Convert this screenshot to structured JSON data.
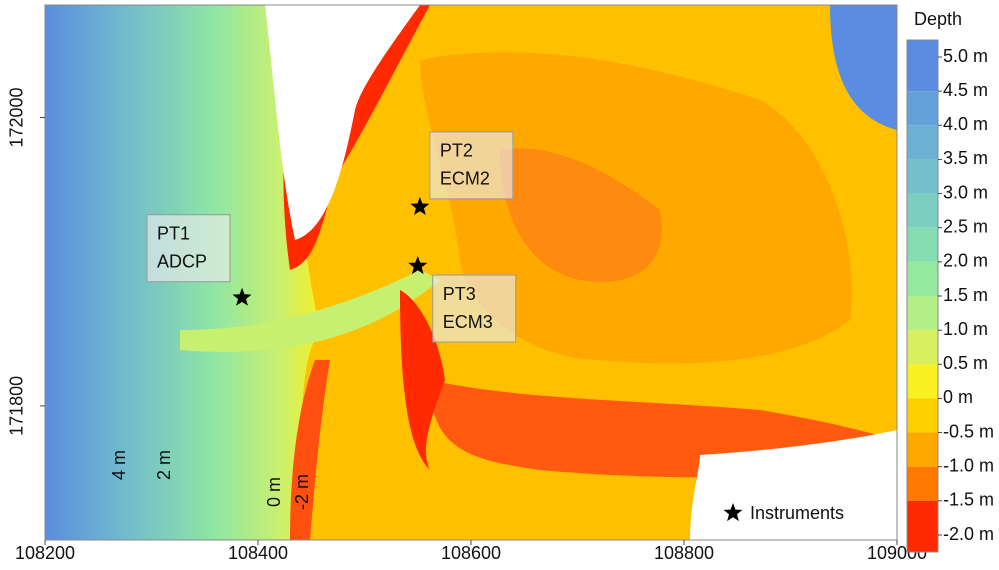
{
  "chart_data": {
    "type": "map",
    "xlim": [
      108200,
      109000
    ],
    "xticks": [
      108200,
      108400,
      108600,
      108800,
      109000
    ],
    "ylim": [
      171707,
      172078
    ],
    "yticks": [
      171800,
      172000
    ],
    "instruments": [
      {
        "name": "PT1",
        "device": "ADCP",
        "x": 108385,
        "y": 171875
      },
      {
        "name": "PT2",
        "device": "ECM2",
        "x": 108552,
        "y": 171938
      },
      {
        "name": "PT3",
        "device": "ECM3",
        "x": 108550,
        "y": 171897
      }
    ],
    "contour_labels": [
      "4 m",
      "2 m",
      "0 m",
      "-2 m"
    ],
    "legend": {
      "label": "Instruments"
    },
    "colorbar": {
      "title": "Depth",
      "lim": [
        -2,
        5
      ],
      "ticks": [
        {
          "value": 5,
          "label": "5.0 m"
        },
        {
          "value": 4.5,
          "label": "4.5 m"
        },
        {
          "value": 4,
          "label": "4.0 m"
        },
        {
          "value": 3.5,
          "label": "3.5 m"
        },
        {
          "value": 3,
          "label": "3.0 m"
        },
        {
          "value": 2.5,
          "label": "2.5 m"
        },
        {
          "value": 2,
          "label": "2.0 m"
        },
        {
          "value": 1.5,
          "label": "1.5 m"
        },
        {
          "value": 1,
          "label": "1.0 m"
        },
        {
          "value": 0.5,
          "label": "0.5 m"
        },
        {
          "value": 0,
          "label": "0 m"
        },
        {
          "value": -0.5,
          "label": "-0.5 m"
        },
        {
          "value": -1,
          "label": "-1.0 m"
        },
        {
          "value": -1.5,
          "label": "-1.5 m"
        },
        {
          "value": -2,
          "label": "-2.0 m"
        }
      ],
      "colors": [
        "#5a8de0",
        "#64a0da",
        "#6cb0d4",
        "#74c0cc",
        "#7ccfc0",
        "#84dcb0",
        "#94e8a0",
        "#b4ef88",
        "#d8f060",
        "#f8f020",
        "#ffd000",
        "#ffa800",
        "#ff7800",
        "#ff2a00"
      ]
    }
  }
}
